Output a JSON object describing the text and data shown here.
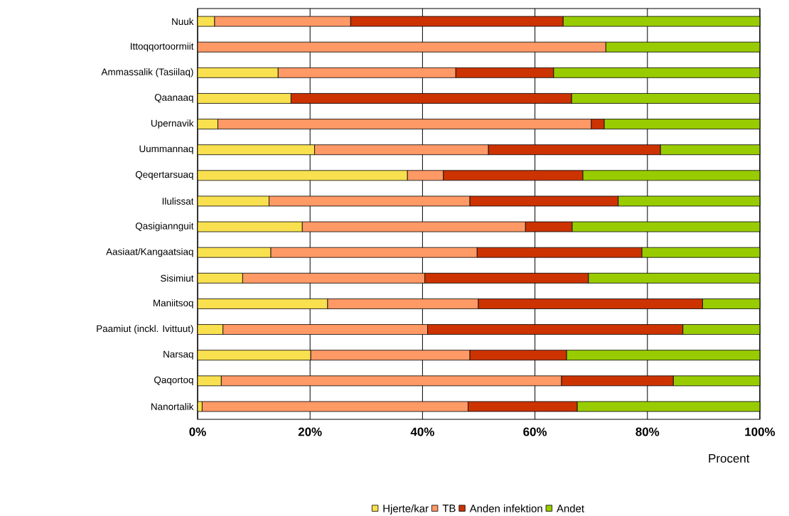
{
  "chart_data": {
    "type": "bar",
    "orientation": "horizontal",
    "stacked": true,
    "xlabel": "Procent",
    "categories": [
      "Nuuk",
      "Ittoqqortoormiit",
      "Ammassalik (Tasiilaq)",
      "Qaanaaq",
      "Upernavik",
      "Uummannaq",
      "Qeqertarsuaq",
      "Ilulissat",
      "Qasigiannguit",
      "Aasiaat/Kangaatsiaq",
      "Sisimiut",
      "Maniitsoq",
      "Paamiut (inckl. Ivittuut)",
      "Narsaq",
      "Qaqortoq",
      "Nanortalik"
    ],
    "series": [
      {
        "name": "Hjerte/kar",
        "color": "#f9e04f",
        "values": [
          3,
          0,
          14.3,
          16.6,
          3.6,
          20.8,
          37.3,
          12.7,
          18.6,
          13,
          8,
          23.1,
          4.5,
          20.1,
          4.2,
          0.8
        ]
      },
      {
        "name": "TB",
        "color": "#ff9966",
        "values": [
          24.2,
          72.6,
          31.6,
          0,
          66.4,
          30.9,
          6.4,
          35.7,
          39.7,
          36.7,
          32.4,
          26.8,
          36.4,
          28.3,
          60.5,
          47.3
        ]
      },
      {
        "name": "Anden infektion",
        "color": "#cc3300",
        "values": [
          37.8,
          0,
          17.4,
          49.9,
          2.3,
          30.6,
          24.8,
          26.4,
          8.3,
          29.3,
          29.1,
          39.9,
          45.4,
          17.2,
          19.9,
          19.4
        ]
      },
      {
        "name": "Andet",
        "color": "#99cc00",
        "values": [
          35,
          27.4,
          36.7,
          33.5,
          27.7,
          17.7,
          31.5,
          25.2,
          33.4,
          21,
          30.5,
          10.2,
          13.7,
          34.4,
          15.4,
          32.5
        ]
      }
    ],
    "xlim": [
      0,
      100
    ],
    "xticks": [
      {
        "value": 0,
        "label": "0%"
      },
      {
        "value": 20,
        "label": "20%"
      },
      {
        "value": 40,
        "label": "40%"
      },
      {
        "value": 60,
        "label": "60%"
      },
      {
        "value": 80,
        "label": "80%"
      },
      {
        "value": 100,
        "label": "100%"
      }
    ],
    "grid": "x",
    "legend": "bottom"
  }
}
